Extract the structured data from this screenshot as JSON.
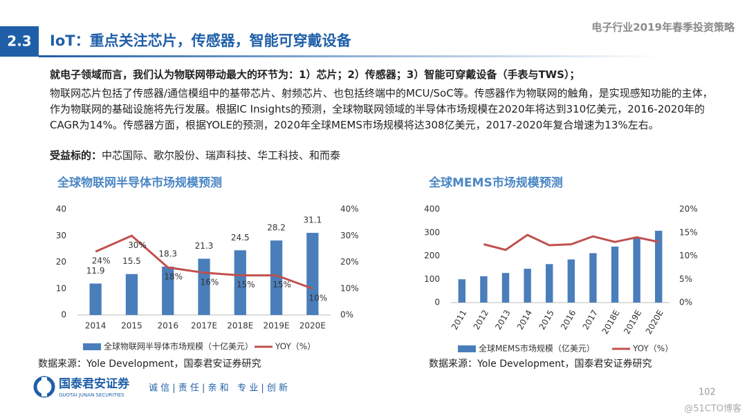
{
  "header": {
    "section": "2.3",
    "title": "IoT：重点关注芯片，传感器，智能可穿戴设备",
    "report": "电子行业2019年春季投资策略"
  },
  "body": {
    "intro": "就电子领域而言，我们认为物联网带动最大的环节为：1）芯片；2）传感器；3）智能可穿戴设备（手表与TWS）；",
    "paragraph": "物联网芯片包括了传感器/通信模组中的基带芯片、射频芯片、也包括终端中的MCU/SoC等。传感器作为物联网的触角，是实现感知功能的主体，作为物联网的基础设施将先行发展。根据IC Insights的预测，全球物联网领域的半导体市场规模在2020年将达到310亿美元，2016-2020年的CAGR为14%。传感器方面，根据YOLE的预测，2020年全球MEMS市场规模将达308亿美元，2017-2020年复合增速为13%左右。",
    "beneficiary_label": "受益标的：",
    "beneficiaries": "中芯国际、歌尔股份、瑞声科技、华工科技、和而泰"
  },
  "chart_data": [
    {
      "type": "combo",
      "title": "全球物联网半导体市场规模预测",
      "categories": [
        "2014",
        "2015",
        "2016",
        "2017E",
        "2018E",
        "2019E",
        "2020E"
      ],
      "series": [
        {
          "name": "全球物联网半导体市场规模（十亿美元）",
          "type": "bar",
          "color": "#4a7ebb",
          "values": [
            11.9,
            15.5,
            18.3,
            21.3,
            24.5,
            28.2,
            31.1
          ],
          "show_values": true
        },
        {
          "name": "YOY（%）",
          "type": "line",
          "axis": "y2",
          "color": "#c0504d",
          "values": [
            24,
            30,
            18,
            16,
            15,
            15,
            10
          ],
          "value_labels": [
            "24%",
            "30%",
            "18%",
            "16%",
            "15%",
            "15%",
            "10%"
          ]
        }
      ],
      "ylim": [
        0,
        40
      ],
      "yticks": [
        0,
        10,
        20,
        30,
        40
      ],
      "y2lim": [
        0,
        40
      ],
      "y2ticks": [
        {
          "value": 0,
          "label": "0%"
        },
        {
          "value": 10,
          "label": "10%"
        },
        {
          "value": 20,
          "label": "20%"
        },
        {
          "value": 30,
          "label": "30%"
        },
        {
          "value": 40,
          "label": "40%"
        }
      ],
      "grid": false,
      "rotate_x_labels": false,
      "source": "数据来源：Yole Development，国泰君安证券研究"
    },
    {
      "type": "combo",
      "title": "全球MEMS市场规模预测",
      "categories": [
        "2011",
        "2012",
        "2013",
        "2014",
        "2015",
        "2016",
        "2017",
        "2018E",
        "2019E",
        "2020E"
      ],
      "series": [
        {
          "name": "全球MEMS市场规模（亿美元）",
          "type": "bar",
          "color": "#4a7ebb",
          "values": [
            100,
            113,
            127,
            145,
            165,
            185,
            212,
            240,
            280,
            308
          ],
          "show_values": false
        },
        {
          "name": "YOY（%）",
          "type": "line",
          "axis": "y2",
          "color": "#c0504d",
          "values": [
            null,
            12.5,
            11.3,
            14.5,
            12.3,
            12.5,
            14.2,
            13.0,
            14.0,
            13.0
          ]
        }
      ],
      "ylim": [
        0,
        400
      ],
      "yticks": [
        0,
        100,
        200,
        300,
        400
      ],
      "y2lim": [
        0,
        20
      ],
      "y2ticks": [
        {
          "value": 0,
          "label": "0%"
        },
        {
          "value": 5,
          "label": "5%"
        },
        {
          "value": 10,
          "label": "10%"
        },
        {
          "value": 15,
          "label": "15%"
        },
        {
          "value": 20,
          "label": "20%"
        }
      ],
      "grid": false,
      "rotate_x_labels": true,
      "source": "数据来源：Yole Development，国泰君安证券研究"
    }
  ],
  "footer": {
    "company": "国泰君安证券",
    "company_en": "GUOTAI JUNAN SECURITIES",
    "slogan": "诚 信 | 责 任 | 亲 和   专 业 | 创 新",
    "page": "102",
    "watermark": "@51CTO博客"
  }
}
